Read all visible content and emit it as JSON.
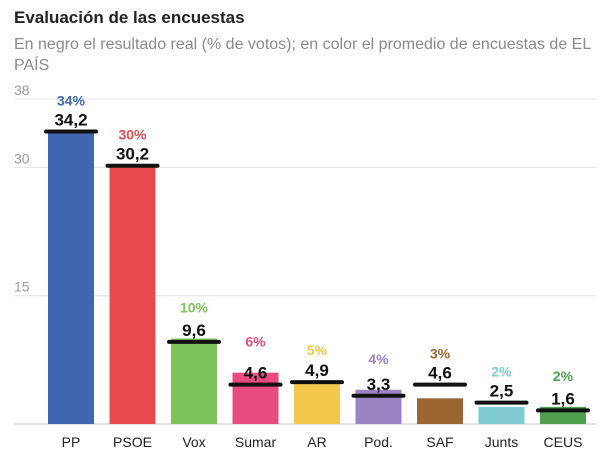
{
  "chart_data": {
    "type": "bar",
    "title": "Evaluación de las encuestas",
    "subtitle": "En negro el resultado real (% de votos); en color el promedio de encuestas de EL PAÍS",
    "categories": [
      "PP",
      "PSOE",
      "Vox",
      "Sumar",
      "AR",
      "Pod.",
      "SAF",
      "Junts",
      "CEUS"
    ],
    "series": [
      {
        "values": [
          34.2,
          30.2,
          9.6,
          4.6,
          4.9,
          3.3,
          4.6,
          2.5,
          1.6
        ],
        "labels": [
          "34,2",
          "30,2",
          "9,6",
          "4,6",
          "4,9",
          "3,3",
          "4,6",
          "2,5",
          "1,6"
        ],
        "color": "#111111"
      },
      {
        "values": [
          34,
          30,
          10,
          6,
          5,
          4,
          3,
          2,
          2
        ],
        "labels": [
          "34%",
          "30%",
          "10%",
          "6%",
          "5%",
          "4%",
          "3%",
          "2%",
          "2%"
        ],
        "colors": [
          "#3f66ae",
          "#e84a4f",
          "#7fc35b",
          "#e84b7d",
          "#f2c94c",
          "#9b84c4",
          "#9b6531",
          "#7fcbd0",
          "#4f9e4f"
        ]
      }
    ],
    "y_ticks": [
      "38",
      "30",
      "15"
    ],
    "y_tick_values": [
      38,
      30,
      15
    ],
    "ylim": [
      0,
      38
    ],
    "grid": true,
    "legend": "none"
  }
}
